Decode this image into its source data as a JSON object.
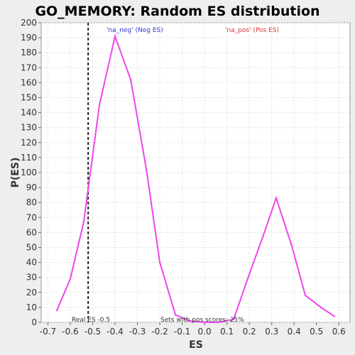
{
  "chart_data": {
    "type": "line",
    "title": "GO_MEMORY: Random ES distribution",
    "xlabel": "ES",
    "ylabel": "P(ES)",
    "xlim": [
      -0.73,
      0.65
    ],
    "ylim": [
      0,
      200
    ],
    "x_ticks": [
      -0.7,
      -0.6,
      -0.5,
      -0.4,
      -0.3,
      -0.2,
      -0.1,
      0.0,
      0.1,
      0.2,
      0.3,
      0.4,
      0.5,
      0.6
    ],
    "x_tick_labels": [
      "-0.7",
      "-0.6",
      "-0.5",
      "-0.4",
      "-0.3",
      "-0.2",
      "-0.1",
      "0.0",
      "0.1",
      "0.2",
      "0.3",
      "0.4",
      "0.5",
      "0.6"
    ],
    "y_ticks": [
      0,
      10,
      20,
      30,
      40,
      50,
      60,
      70,
      80,
      90,
      100,
      110,
      120,
      130,
      140,
      150,
      160,
      170,
      180,
      190,
      200
    ],
    "grid": true,
    "line_color": "#ee44ee",
    "series": [
      {
        "x": [
          -0.66,
          -0.6,
          -0.54,
          -0.47,
          -0.4,
          -0.33,
          -0.26,
          -0.2,
          -0.13,
          -0.07,
          0.0,
          0.06,
          0.13,
          0.19,
          0.26,
          0.32,
          0.39,
          0.45,
          0.52,
          0.58
        ],
        "y": [
          8,
          29,
          67,
          145,
          191,
          162,
          102,
          40,
          5,
          1,
          0,
          0,
          2,
          28,
          57,
          83,
          51,
          18,
          10,
          4
        ]
      }
    ],
    "vline": {
      "x": -0.52,
      "style": "dashed",
      "label": "Real ES -0.5"
    },
    "annotations": [
      {
        "text": "'na_neg' (Neg ES)",
        "color": "#3333cc"
      },
      {
        "text": "'na_pos' (Pos ES)",
        "color": "#dd3333"
      },
      {
        "text": "Sets with pos scores: 25%",
        "color": "#333333"
      }
    ]
  }
}
